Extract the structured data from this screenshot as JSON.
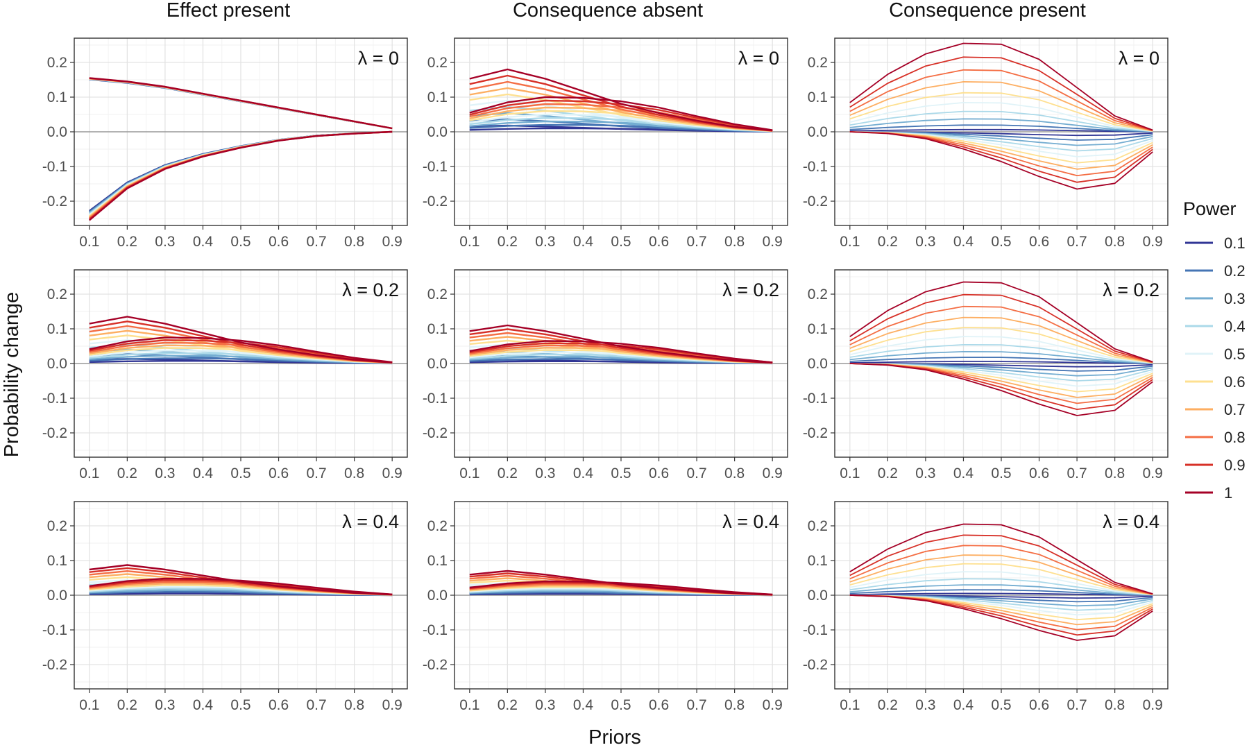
{
  "chart_data": {
    "type": "line",
    "xlabel": "Priors",
    "ylabel": "Probability change",
    "x": [
      0.1,
      0.2,
      0.3,
      0.4,
      0.5,
      0.6,
      0.7,
      0.8,
      0.9
    ],
    "x_tick_labels": [
      "0.1",
      "0.2",
      "0.3",
      "0.4",
      "0.5",
      "0.6",
      "0.7",
      "0.8",
      "0.9"
    ],
    "xlim": [
      0.06,
      0.94
    ],
    "ylim": [
      -0.27,
      0.27
    ],
    "y_ticks": [
      0.2,
      0.1,
      0.0,
      -0.1,
      -0.2
    ],
    "y_tick_labels": [
      "0.2",
      "0.1",
      "0.0",
      "-0.1",
      "-0.2"
    ],
    "grid": true,
    "columns": [
      "Effect present",
      "Consequence absent",
      "Consequence present"
    ],
    "rows": [
      {
        "label": "λ = 0",
        "lambda": 0
      },
      {
        "label": "λ = 0.2",
        "lambda": 0.2
      },
      {
        "label": "λ = 0.4",
        "lambda": 0.4
      }
    ],
    "legend": {
      "title": "Power",
      "position": "right",
      "entries": [
        {
          "label": "0.1",
          "color": "#313695"
        },
        {
          "label": "0.2",
          "color": "#4575b4"
        },
        {
          "label": "0.3",
          "color": "#74add1"
        },
        {
          "label": "0.4",
          "color": "#abd9e9"
        },
        {
          "label": "0.5",
          "color": "#e0f3f8"
        },
        {
          "label": "0.6",
          "color": "#fee090"
        },
        {
          "label": "0.7",
          "color": "#fdae61"
        },
        {
          "label": "0.8",
          "color": "#f46d43"
        },
        {
          "label": "0.9",
          "color": "#d73027"
        },
        {
          "label": "1",
          "color": "#a50026"
        }
      ]
    },
    "series_shapes": {
      "effect_upper": {
        "values": [
          0.155,
          0.145,
          0.13,
          0.11,
          0.09,
          0.07,
          0.05,
          0.03,
          0.01
        ]
      },
      "effect_lower": {
        "values": [
          -0.25,
          -0.16,
          -0.105,
          -0.07,
          -0.045,
          -0.025,
          -0.012,
          -0.005,
          0.0
        ]
      },
      "bump": {
        "values": [
          0.55,
          0.85,
          1.0,
          0.98,
          0.88,
          0.7,
          0.45,
          0.22,
          0.05
        ]
      },
      "dip": {
        "values": [
          -0.85,
          -1.0,
          -0.85,
          -0.65,
          -0.45,
          -0.3,
          -0.18,
          -0.08,
          -0.02
        ]
      },
      "cp_upper": {
        "values": [
          0.33,
          0.65,
          0.88,
          1.0,
          0.99,
          0.82,
          0.5,
          0.18,
          0.02
        ]
      },
      "cp_lower": {
        "values": [
          0.0,
          -0.03,
          -0.12,
          -0.3,
          -0.52,
          -0.78,
          -1.0,
          -0.9,
          -0.35
        ]
      }
    },
    "panels": [
      [
        {
          "kind": "effect",
          "upper_scale": 1.0,
          "lower_scale": 1.0
        },
        {
          "kind": "absent",
          "top": 0.1,
          "bottom": -0.18
        },
        {
          "kind": "cp",
          "top": 0.255,
          "bottom": -0.165
        }
      ],
      [
        {
          "kind": "absent",
          "top": 0.075,
          "bottom": -0.135
        },
        {
          "kind": "absent",
          "top": 0.065,
          "bottom": -0.11
        },
        {
          "kind": "cp",
          "top": 0.235,
          "bottom": -0.15
        }
      ],
      [
        {
          "kind": "absent",
          "top": 0.048,
          "bottom": -0.087
        },
        {
          "kind": "absent",
          "top": 0.04,
          "bottom": -0.07
        },
        {
          "kind": "cp",
          "top": 0.205,
          "bottom": -0.13
        }
      ]
    ]
  }
}
